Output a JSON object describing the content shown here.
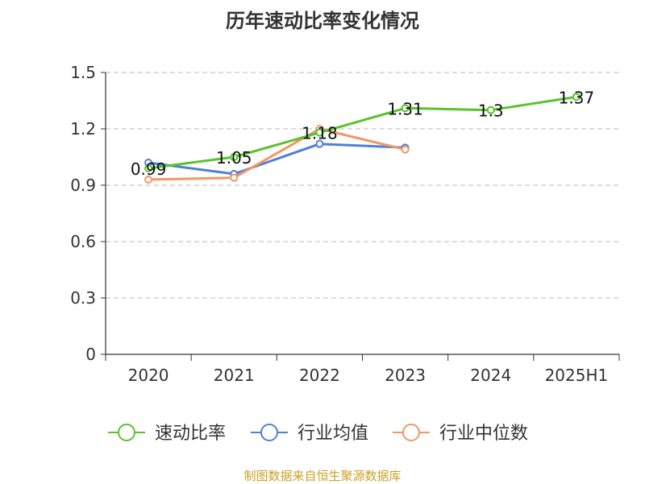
{
  "chart_data": {
    "type": "line",
    "title": "历年速动比率变化情况",
    "categories": [
      "2020",
      "2021",
      "2022",
      "2023",
      "2024",
      "2025H1"
    ],
    "ylim": [
      0,
      1.5
    ],
    "yticks": [
      "0",
      "0.3",
      "0.6",
      "0.9",
      "1.2",
      "1.5"
    ],
    "grid": true,
    "legend_position": "bottom",
    "series": [
      {
        "name": "速动比率",
        "color": "#5ac22e",
        "values": [
          0.99,
          1.05,
          1.18,
          1.31,
          1.3,
          1.37
        ],
        "labels": [
          "0.99",
          "1.05",
          "1.18",
          "1.31",
          "1.3",
          "1.37"
        ]
      },
      {
        "name": "行业均值",
        "color": "#4e7fd9",
        "values": [
          1.02,
          0.96,
          1.12,
          1.1,
          null,
          null
        ]
      },
      {
        "name": "行业中位数",
        "color": "#f39665",
        "values": [
          0.93,
          0.94,
          1.2,
          1.09,
          null,
          null
        ]
      }
    ]
  },
  "footer": {
    "source": "制图数据来自恒生聚源数据库"
  }
}
